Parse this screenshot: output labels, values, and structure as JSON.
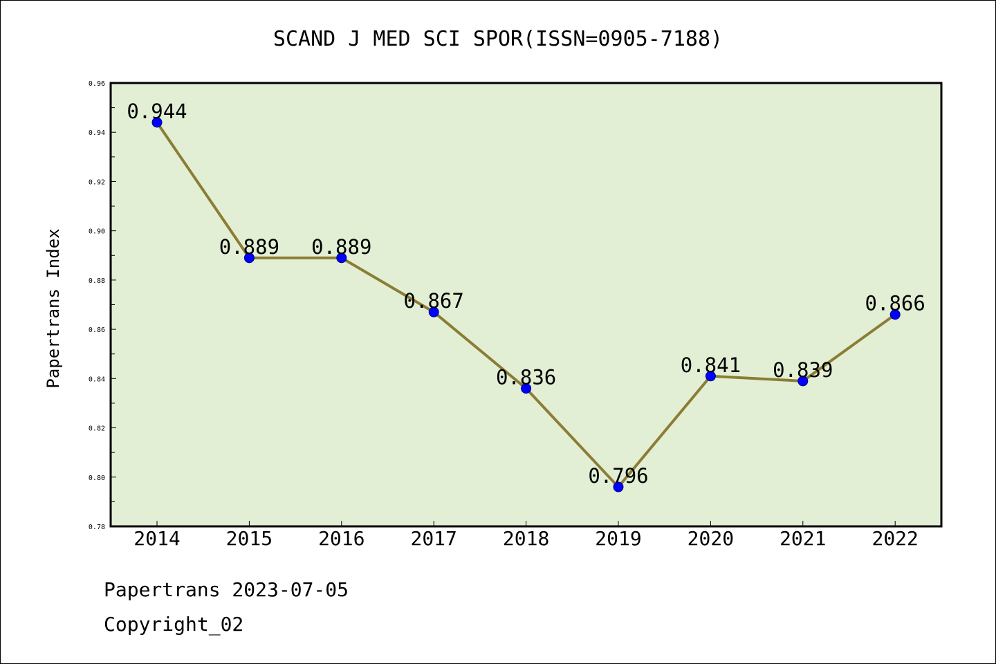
{
  "chart_data": {
    "type": "line",
    "title": "SCAND J MED SCI SPOR(ISSN=0905-7188)",
    "xlabel": "",
    "ylabel": "Papertrans Index",
    "categories": [
      "2014",
      "2015",
      "2016",
      "2017",
      "2018",
      "2019",
      "2020",
      "2021",
      "2022"
    ],
    "values": [
      0.944,
      0.889,
      0.889,
      0.867,
      0.836,
      0.796,
      0.841,
      0.839,
      0.866
    ],
    "data_labels": [
      "0.944",
      "0.889",
      "0.889",
      "0.867",
      "0.836",
      "0.796",
      "0.841",
      "0.839",
      "0.866"
    ],
    "ylim": [
      0.78,
      0.96
    ],
    "y_ticks": [
      "0.78",
      "0.80",
      "0.82",
      "0.84",
      "0.86",
      "0.88",
      "0.90",
      "0.92",
      "0.94",
      "0.96"
    ],
    "grid": false,
    "colors": {
      "plot_background": "#e2efd5",
      "line": "#8b7d35",
      "marker": "#0000ff"
    }
  },
  "footer": {
    "source": "Papertrans 2023-07-05",
    "copyright": "Copyright_02"
  }
}
